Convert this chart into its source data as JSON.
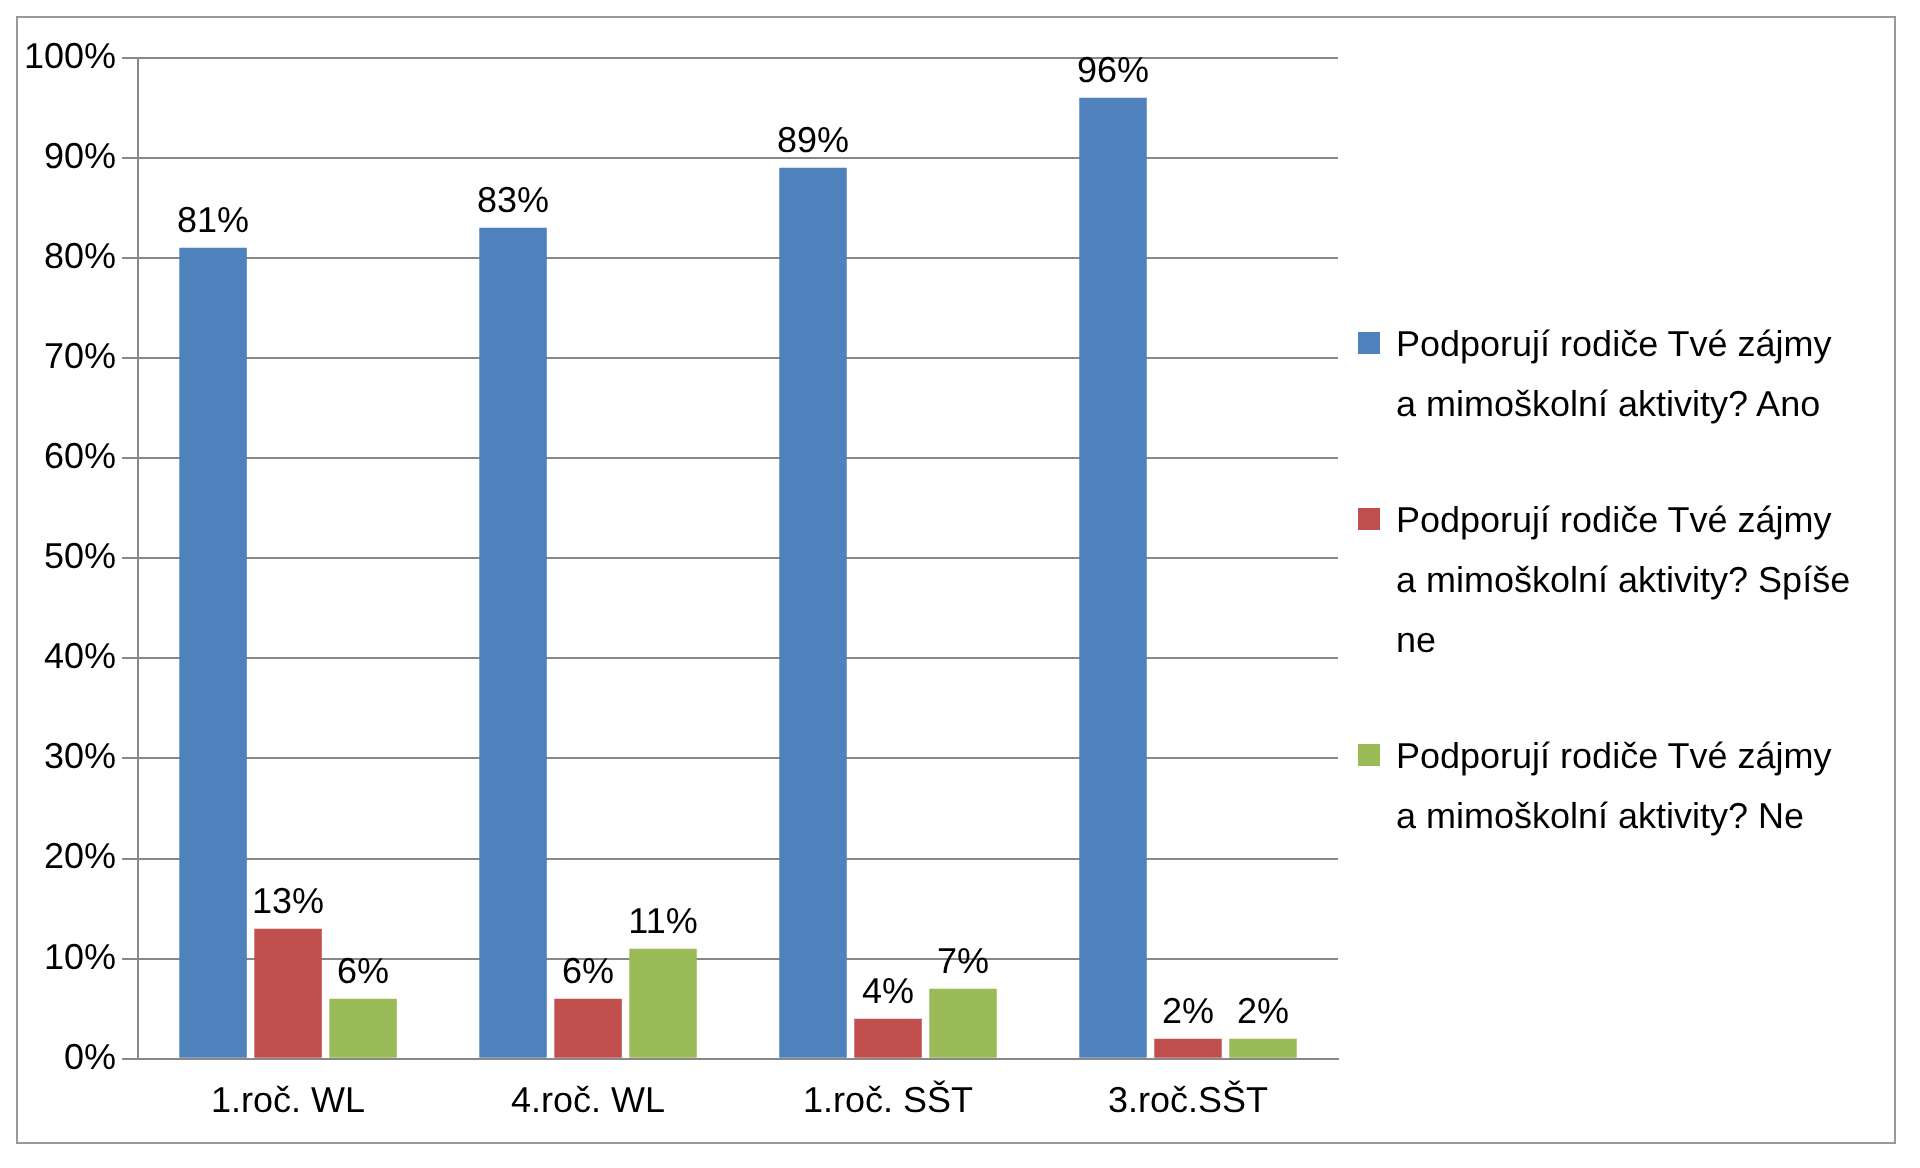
{
  "chart_data": {
    "type": "bar",
    "categories": [
      "1.roč. WL",
      "4.roč. WL",
      "1.roč. SŠT",
      "3.roč.SŠT"
    ],
    "series": [
      {
        "name": "Podporují rodiče Tvé zájmy a mimoškolní aktivity? Ano",
        "color": "#4f81bd",
        "values": [
          81,
          83,
          89,
          96
        ],
        "value_labels": [
          "81%",
          "83%",
          "89%",
          "96%"
        ]
      },
      {
        "name": "Podporují rodiče Tvé zájmy a mimoškolní aktivity? Spíše ne",
        "color": "#c0504d",
        "values": [
          13,
          6,
          4,
          2
        ],
        "value_labels": [
          "13%",
          "6%",
          "4%",
          "2%"
        ]
      },
      {
        "name": "Podporují rodiče Tvé zájmy a mimoškolní aktivity? Ne",
        "color": "#9bbb59",
        "values": [
          6,
          11,
          7,
          2
        ],
        "value_labels": [
          "6%",
          "11%",
          "7%",
          "2%"
        ]
      }
    ],
    "ylim": [
      0,
      100
    ],
    "yticks": [
      {
        "value": 0,
        "label": "0%"
      },
      {
        "value": 10,
        "label": "10%"
      },
      {
        "value": 20,
        "label": "20%"
      },
      {
        "value": 30,
        "label": "30%"
      },
      {
        "value": 40,
        "label": "40%"
      },
      {
        "value": 50,
        "label": "50%"
      },
      {
        "value": 60,
        "label": "60%"
      },
      {
        "value": 70,
        "label": "70%"
      },
      {
        "value": 80,
        "label": "80%"
      },
      {
        "value": 90,
        "label": "90%"
      },
      {
        "value": 100,
        "label": "100%"
      }
    ],
    "grid": "y",
    "legend": "right"
  }
}
